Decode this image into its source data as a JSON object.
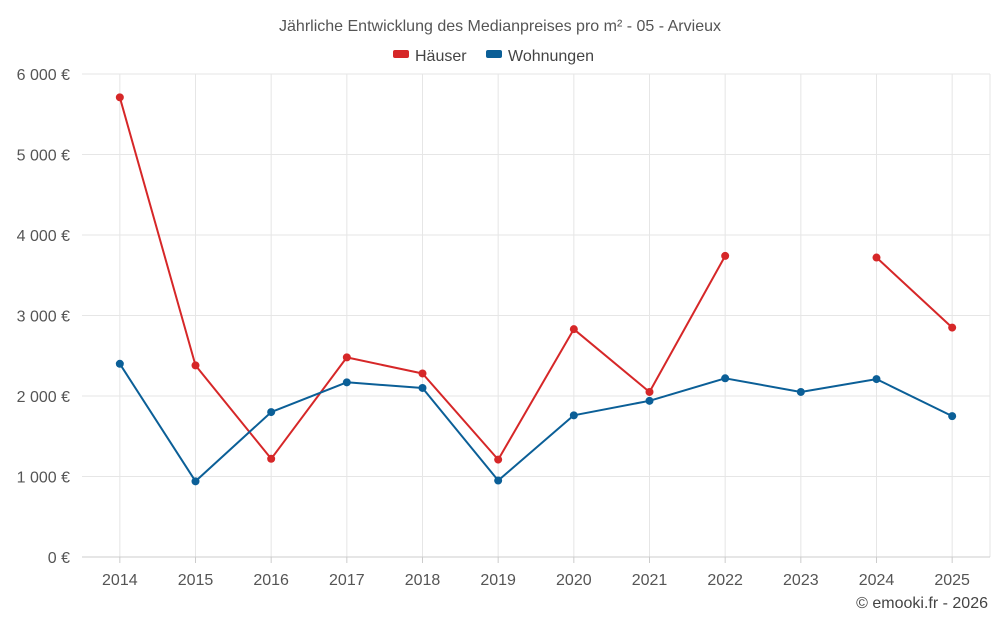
{
  "chart_data": {
    "type": "line",
    "title": "Jährliche Entwicklung des Medianpreises pro m² - 05 - Arvieux",
    "xlabel": "",
    "ylabel": "",
    "categories": [
      "2014",
      "2015",
      "2016",
      "2017",
      "2018",
      "2019",
      "2020",
      "2021",
      "2022",
      "2023",
      "2024",
      "2025"
    ],
    "ylim": [
      0,
      6000
    ],
    "y_ticks": [
      0,
      1000,
      2000,
      3000,
      4000,
      5000,
      6000
    ],
    "y_tick_labels": [
      "0 €",
      "1 000 €",
      "2 000 €",
      "3 000 €",
      "4 000 €",
      "5 000 €",
      "6 000 €"
    ],
    "grid": true,
    "legend_position": "top-center",
    "series": [
      {
        "name": "Häuser",
        "color": "#d62728",
        "values": [
          5710,
          2380,
          1220,
          2480,
          2280,
          1210,
          2830,
          2050,
          3740,
          null,
          3720,
          2850
        ]
      },
      {
        "name": "Wohnungen",
        "color": "#0b5f97",
        "values": [
          2400,
          940,
          1800,
          2170,
          2100,
          950,
          1760,
          1940,
          2220,
          2050,
          2210,
          1750
        ]
      }
    ]
  },
  "credit": "© emooki.fr - 2026"
}
